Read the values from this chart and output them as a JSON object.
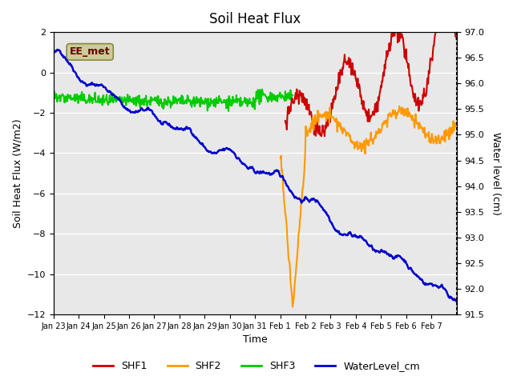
{
  "title": "Soil Heat Flux",
  "xlabel": "Time",
  "ylabel_left": "Soil Heat Flux (W/m2)",
  "ylabel_right": "Water level (cm)",
  "annotation": "EE_met",
  "ylim_left": [
    -12,
    2
  ],
  "ylim_right": [
    91.5,
    97.0
  ],
  "yticks_left": [
    -12,
    -10,
    -8,
    -6,
    -4,
    -2,
    0,
    2
  ],
  "yticks_right": [
    91.5,
    92.0,
    92.5,
    93.0,
    93.5,
    94.0,
    94.5,
    95.0,
    95.5,
    96.0,
    96.5,
    97.0
  ],
  "colors": {
    "SHF1": "#cc0000",
    "SHF2": "#ff9900",
    "SHF3": "#00cc00",
    "WaterLevel": "#0000cc"
  },
  "linewidths": {
    "SHF1": 1.5,
    "SHF2": 1.5,
    "SHF3": 1.5,
    "WaterLevel": 1.8
  },
  "background_color": "#ffffff",
  "plot_bg_color": "#e8e8e8",
  "grid_color": "#ffffff",
  "annotation_box_color": "#cccc99",
  "annotation_text_color": "#660000",
  "x_tick_labels": [
    "Jan 23",
    "Jan 24",
    "Jan 25",
    "Jan 26",
    "Jan 27",
    "Jan 28",
    "Jan 29",
    "Jan 30",
    "Jan 31",
    "Feb 1",
    "Feb 2",
    "Feb 3",
    "Feb 4",
    "Feb 5",
    "Feb 6",
    "Feb 7"
  ],
  "n_points_per_day": 48,
  "n_days": 16
}
